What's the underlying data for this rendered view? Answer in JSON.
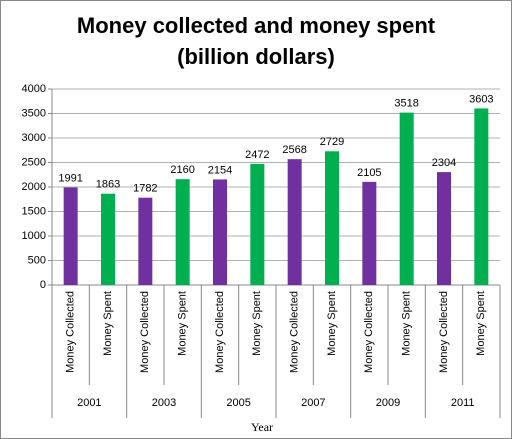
{
  "chart_data": {
    "type": "bar",
    "title": [
      "Money collected and money spent",
      "(billion dollars)"
    ],
    "x_label": "Year",
    "categories": [
      "2001",
      "2003",
      "2005",
      "2007",
      "2009",
      "2011"
    ],
    "series": [
      {
        "name": "Money Collected",
        "color": "#7030a0",
        "values": [
          1991,
          1782,
          2154,
          2568,
          2105,
          2304
        ]
      },
      {
        "name": "Money Spent",
        "color": "#00b050",
        "values": [
          1863,
          2160,
          2472,
          2729,
          3518,
          3603
        ]
      }
    ],
    "ylim": [
      0,
      4000
    ],
    "yticks": [
      0,
      500,
      1000,
      1500,
      2000,
      2500,
      3000,
      3500,
      4000
    ],
    "grid": true
  }
}
